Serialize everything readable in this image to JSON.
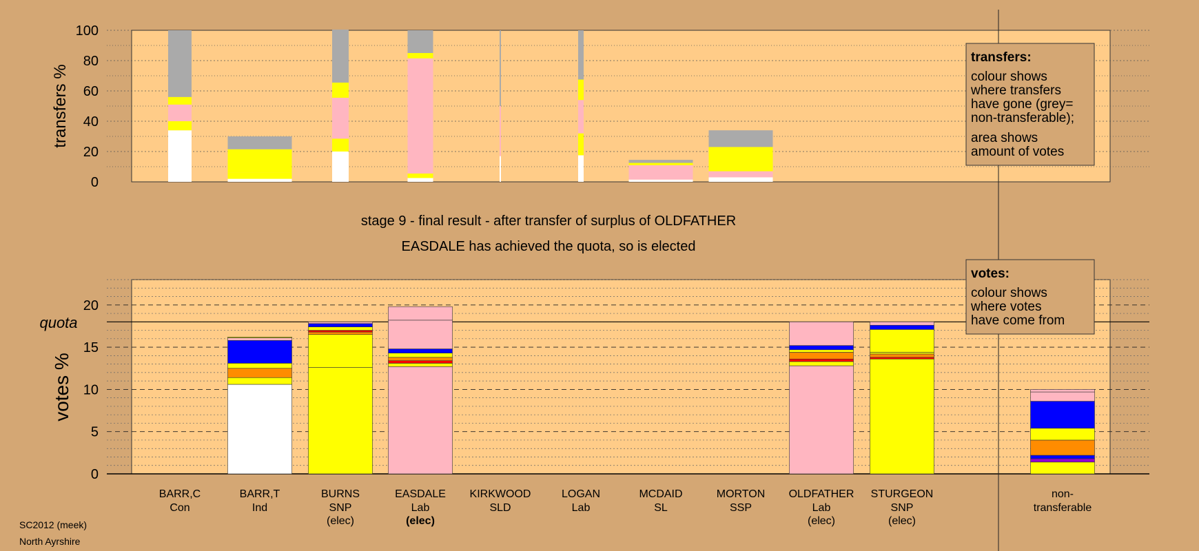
{
  "chart_data": [
    {
      "type": "bar",
      "panel": "transfers",
      "ylabel": "transfers %",
      "ylim": [
        0,
        100
      ],
      "yticks": [
        "0",
        "20",
        "40",
        "60",
        "80",
        "100"
      ],
      "categories": [
        "BARR,C",
        "BARR,T",
        "BURNS",
        "EASDALE",
        "KIRKWOOD",
        "LOGAN",
        "MCDAID",
        "MORTON",
        "OLDFATHER",
        "STURGEON"
      ],
      "colors": [
        "#ffffff",
        "#ffff00",
        "#ffb6c1",
        "#ffff00",
        "#aaaaaa"
      ],
      "stacks": [
        [
          34,
          6,
          11,
          5,
          44
        ],
        [
          2,
          4,
          0,
          15.5,
          8.5
        ],
        [
          20,
          8.5,
          27,
          10,
          35
        ],
        [
          2.5,
          3,
          76,
          3.5,
          15
        ],
        [
          17,
          0,
          33,
          0,
          50
        ],
        [
          17.5,
          14.5,
          22,
          13.5,
          32.5
        ],
        [
          1.5,
          0,
          9.5,
          1.5,
          2
        ],
        [
          3,
          0,
          4,
          16,
          11
        ],
        null,
        null
      ],
      "legend": {
        "title": "transfers:",
        "lines": [
          "colour shows",
          "where transfers",
          "have gone (grey=",
          "non-transferable);",
          "area shows",
          "amount of votes"
        ]
      }
    },
    {
      "type": "bar",
      "panel": "votes",
      "ylabel": "votes %",
      "ylim": [
        0,
        23
      ],
      "yticks": [
        "0",
        "5",
        "10",
        "15",
        "20"
      ],
      "quota_label": "quota",
      "quota": 18,
      "categories": [
        "BARR,C",
        "BARR,T",
        "BURNS",
        "EASDALE",
        "KIRKWOOD",
        "LOGAN",
        "MCDAID",
        "MORTON",
        "OLDFATHER",
        "STURGEON",
        "non-transferable"
      ],
      "parties": [
        "Con",
        "Ind",
        "SNP",
        "Lab",
        "SLD",
        "Lab",
        "SL",
        "SSP",
        "Lab",
        "SNP",
        ""
      ],
      "status": [
        "",
        "",
        "(elec)",
        "(elec)",
        "",
        "",
        "",
        "",
        "(elec)",
        "(elec)",
        ""
      ],
      "status_bold": [
        false,
        false,
        false,
        true,
        false,
        false,
        false,
        false,
        false,
        false,
        false
      ],
      "stacks": [
        [],
        [
          [
            10.6,
            "#ffffff"
          ],
          [
            0.8,
            "#ffff00"
          ],
          [
            1.1,
            "#ff8c00"
          ],
          [
            0.6,
            "#ffff00"
          ],
          [
            2.7,
            "#0000ff"
          ],
          [
            0.3,
            "#ffb6c1"
          ],
          [
            0.1,
            "#ffff00"
          ]
        ],
        [
          [
            12.6,
            "#ffff00"
          ],
          [
            3.9,
            "#ffff00"
          ],
          [
            0.3,
            "#ff8c00"
          ],
          [
            0.2,
            "#ff0000"
          ],
          [
            0.4,
            "#ffff00"
          ],
          [
            0.4,
            "#0000ff"
          ],
          [
            0.2,
            "#ffb6c1"
          ]
        ],
        [
          [
            12.7,
            "#ffb6c1"
          ],
          [
            0.4,
            "#ffff00"
          ],
          [
            0.3,
            "#ff0000"
          ],
          [
            0.4,
            "#ff8c00"
          ],
          [
            0.5,
            "#ffff00"
          ],
          [
            0.5,
            "#0000ff"
          ],
          [
            3.4,
            "#ffb6c1"
          ],
          [
            1.6,
            "#ffb6c1"
          ]
        ],
        [],
        [],
        [],
        [],
        [
          [
            12.8,
            "#ffb6c1"
          ],
          [
            0.5,
            "#ffff00"
          ],
          [
            0.3,
            "#ff0000"
          ],
          [
            0.8,
            "#ff8c00"
          ],
          [
            0.3,
            "#ffff00"
          ],
          [
            0.5,
            "#0000ff"
          ],
          [
            2.8,
            "#ffb6c1"
          ]
        ],
        [
          [
            13.6,
            "#ffff00"
          ],
          [
            0.2,
            "#ff0000"
          ],
          [
            0.4,
            "#ff8c00"
          ],
          [
            0.2,
            "#ffff00"
          ],
          [
            2.7,
            "#ffff00"
          ],
          [
            0.5,
            "#0000ff"
          ],
          [
            0.4,
            "#ffb6c1"
          ]
        ],
        [
          [
            1.4,
            "#ffff00"
          ],
          [
            0.4,
            "#9400d3"
          ],
          [
            0.4,
            "#0000ff"
          ],
          [
            1.8,
            "#ff8c00"
          ],
          [
            1.4,
            "#ffff00"
          ],
          [
            3.2,
            "#0000ff"
          ],
          [
            1.1,
            "#ffb6c1"
          ],
          [
            0.3,
            "#ffb6c1"
          ]
        ]
      ],
      "legend": {
        "title": "votes:",
        "lines": [
          "colour shows",
          "where votes",
          "have come from"
        ]
      }
    }
  ],
  "caption": {
    "line1": "stage 9 - final result - after transfer of surplus of OLDFATHER",
    "line2": "EASDALE has achieved the quota, so is elected"
  },
  "footer": {
    "line1": "SC2012 (meek)",
    "line2": "North Ayrshire"
  },
  "colors": {
    "background": "#d4a774",
    "panel": "#ffcc88",
    "grey": "#aaaaaa"
  }
}
